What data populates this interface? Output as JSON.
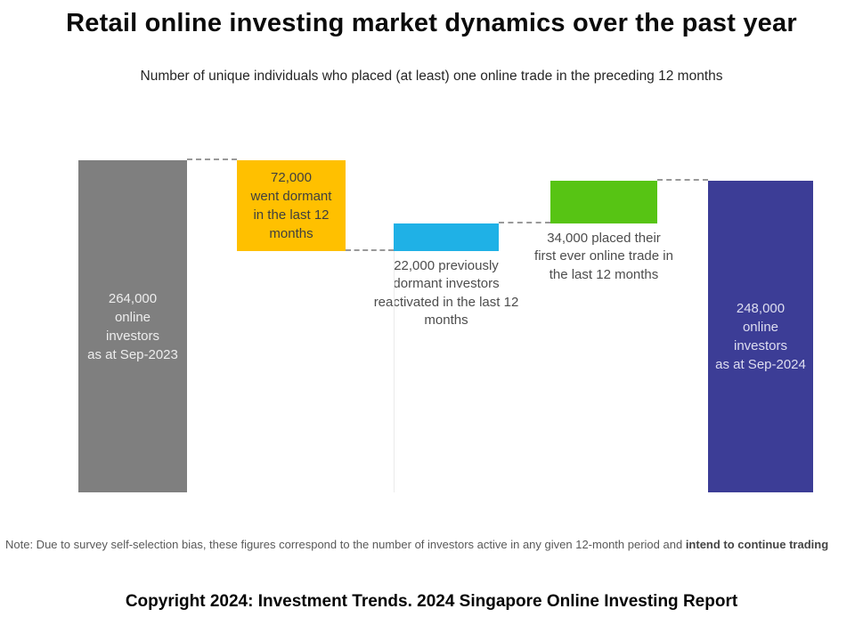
{
  "page": {
    "note_regular": "Note: Due to survey self-selection bias, these figures correspond to the number of investors active in any given 12-month period and ",
    "note_emphasis": "intend to continue trading",
    "footer": "Copyright 2024: Investment Trends. 2024 Singapore Online Investing Report"
  },
  "chart_data": {
    "type": "waterfall",
    "title": "Retail online investing market dynamics over the past year",
    "subtitle": "Number of unique individuals who placed (at least) one online trade in the preceding 12 months",
    "unit": "unique individuals",
    "axis": {
      "baseline_value": 0,
      "max_value": 264000,
      "gridlines": false,
      "legend": false
    },
    "connector_color": "#999999",
    "bars": [
      {
        "id": "investors-sep-2023",
        "kind": "total",
        "value": 264000,
        "color": "#7F7F7F",
        "label_lines": [
          "264,000",
          "online",
          "investors",
          "as at Sep-2023"
        ],
        "label_placement": "inside",
        "label_color": "#EDEDED"
      },
      {
        "id": "went-dormant",
        "kind": "decrease",
        "value": 72000,
        "color": "#FFC000",
        "label_lines": [
          "72,000",
          "went dormant",
          "in the last 12",
          "months"
        ],
        "label_placement": "inside",
        "label_color": "#3F3F3F"
      },
      {
        "id": "reactivated",
        "kind": "increase",
        "value": 22000,
        "color": "#1FB1E6",
        "label_lines": [
          "22,000 previously",
          "dormant investors",
          "reactivated in the last 12",
          "months"
        ],
        "label_placement": "below",
        "label_color": "#4D4D4D"
      },
      {
        "id": "first-ever-trade",
        "kind": "increase",
        "value": 34000,
        "color": "#57C414",
        "label_lines": [
          "34,000 placed their",
          "first ever online trade in",
          "the last 12 months"
        ],
        "label_placement": "below",
        "label_color": "#4D4D4D"
      },
      {
        "id": "investors-sep-2024",
        "kind": "total",
        "value": 248000,
        "color": "#3C3D96",
        "label_lines": [
          "248,000",
          "online",
          "investors",
          "as at Sep-2024"
        ],
        "label_placement": "inside",
        "label_color": "#DEDEF0"
      }
    ]
  }
}
